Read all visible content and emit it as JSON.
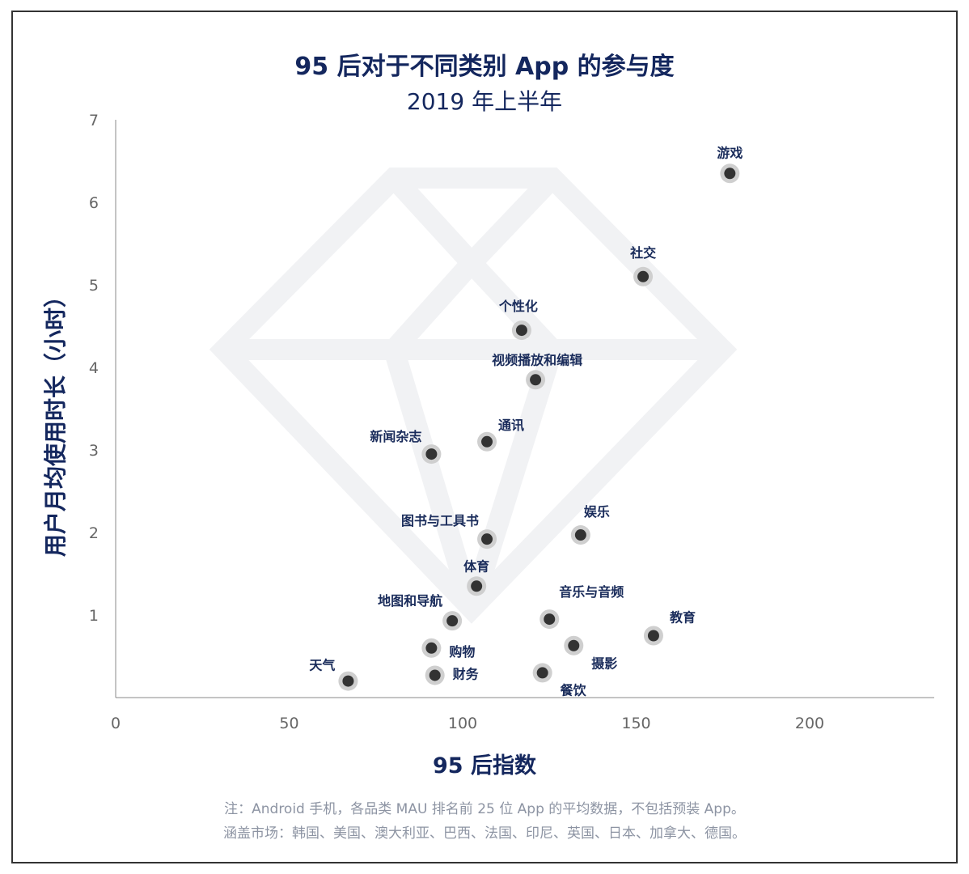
{
  "chart_data": {
    "type": "scatter",
    "title": "95 后对于不同类别 App 的参与度",
    "subtitle": "2019 年上半年",
    "xlabel": "95 后指数",
    "ylabel": "用户月均使用时长（小时）",
    "xlim": [
      0,
      235
    ],
    "ylim": [
      0,
      7
    ],
    "xticks": [
      0,
      50,
      100,
      150,
      200
    ],
    "yticks": [
      1,
      2,
      3,
      4,
      5,
      6,
      7
    ],
    "grid": false,
    "point_color": "#333333",
    "halo_color": "#cfcfcf",
    "points": [
      {
        "label": "游戏",
        "x": 177,
        "y": 6.35
      },
      {
        "label": "社交",
        "x": 152,
        "y": 5.1
      },
      {
        "label": "个性化",
        "x": 117,
        "y": 4.45
      },
      {
        "label": "视频播放和编辑",
        "x": 121,
        "y": 3.85
      },
      {
        "label": "通讯",
        "x": 107,
        "y": 3.1
      },
      {
        "label": "新闻杂志",
        "x": 91,
        "y": 2.95
      },
      {
        "label": "娱乐",
        "x": 134,
        "y": 1.97
      },
      {
        "label": "图书与工具书",
        "x": 107,
        "y": 1.92
      },
      {
        "label": "体育",
        "x": 104,
        "y": 1.35
      },
      {
        "label": "音乐与音频",
        "x": 125,
        "y": 0.95
      },
      {
        "label": "地图和导航",
        "x": 97,
        "y": 0.93
      },
      {
        "label": "教育",
        "x": 155,
        "y": 0.75
      },
      {
        "label": "摄影",
        "x": 132,
        "y": 0.63
      },
      {
        "label": "购物",
        "x": 91,
        "y": 0.6
      },
      {
        "label": "餐饮",
        "x": 123,
        "y": 0.3
      },
      {
        "label": "财务",
        "x": 92,
        "y": 0.27
      },
      {
        "label": "天气",
        "x": 67,
        "y": 0.2
      }
    ]
  },
  "notes": {
    "line1": "注：Android 手机，各品类 MAU 排名前 25 位 App 的平均数据，不包括预装 App。",
    "line2": "涵盖市场：韩国、美国、澳大利亚、巴西、法国、印尼、英国、日本、加拿大、德国。"
  }
}
